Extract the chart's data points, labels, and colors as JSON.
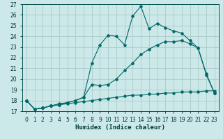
{
  "xlabel": "Humidex (Indice chaleur)",
  "background_color": "#cce8e8",
  "grid_color": "#aacccc",
  "line_color": "#006868",
  "xlim": [
    -0.5,
    23.5
  ],
  "ylim": [
    17,
    27
  ],
  "xticks": [
    0,
    1,
    2,
    3,
    4,
    5,
    6,
    7,
    8,
    9,
    10,
    11,
    12,
    13,
    14,
    15,
    16,
    17,
    18,
    19,
    20,
    21,
    22,
    23
  ],
  "yticks": [
    17,
    18,
    19,
    20,
    21,
    22,
    23,
    24,
    25,
    26,
    27
  ],
  "line1_x": [
    0,
    1,
    2,
    3,
    4,
    5,
    6,
    7,
    8,
    9,
    10,
    11,
    12,
    13,
    14,
    15,
    16,
    17,
    18,
    19,
    20,
    21,
    22,
    23
  ],
  "line1_y": [
    18.0,
    17.2,
    17.3,
    17.5,
    17.6,
    17.7,
    17.8,
    17.9,
    18.0,
    18.1,
    18.2,
    18.3,
    18.4,
    18.5,
    18.5,
    18.6,
    18.6,
    18.7,
    18.7,
    18.8,
    18.8,
    18.8,
    18.9,
    18.9
  ],
  "line2_x": [
    0,
    1,
    2,
    3,
    4,
    5,
    6,
    7,
    8,
    9,
    10,
    11,
    12,
    13,
    14,
    15,
    16,
    17,
    18,
    19,
    20,
    21,
    22,
    23
  ],
  "line2_y": [
    18.0,
    17.2,
    17.3,
    17.5,
    17.6,
    17.8,
    18.0,
    18.3,
    19.5,
    19.4,
    19.5,
    20.0,
    20.8,
    21.5,
    22.3,
    22.8,
    23.2,
    23.5,
    23.5,
    23.6,
    23.3,
    22.9,
    20.5,
    18.7
  ],
  "line3_x": [
    0,
    1,
    2,
    3,
    4,
    5,
    6,
    7,
    8,
    9,
    10,
    11,
    12,
    13,
    14,
    15,
    16,
    17,
    18,
    19,
    20,
    21,
    22,
    23
  ],
  "line3_y": [
    18.0,
    17.2,
    17.3,
    17.5,
    17.7,
    17.8,
    18.0,
    18.3,
    21.5,
    23.2,
    24.1,
    24.0,
    23.2,
    25.9,
    26.8,
    24.7,
    25.2,
    24.8,
    24.5,
    24.3,
    23.6,
    22.9,
    20.4,
    18.7
  ]
}
